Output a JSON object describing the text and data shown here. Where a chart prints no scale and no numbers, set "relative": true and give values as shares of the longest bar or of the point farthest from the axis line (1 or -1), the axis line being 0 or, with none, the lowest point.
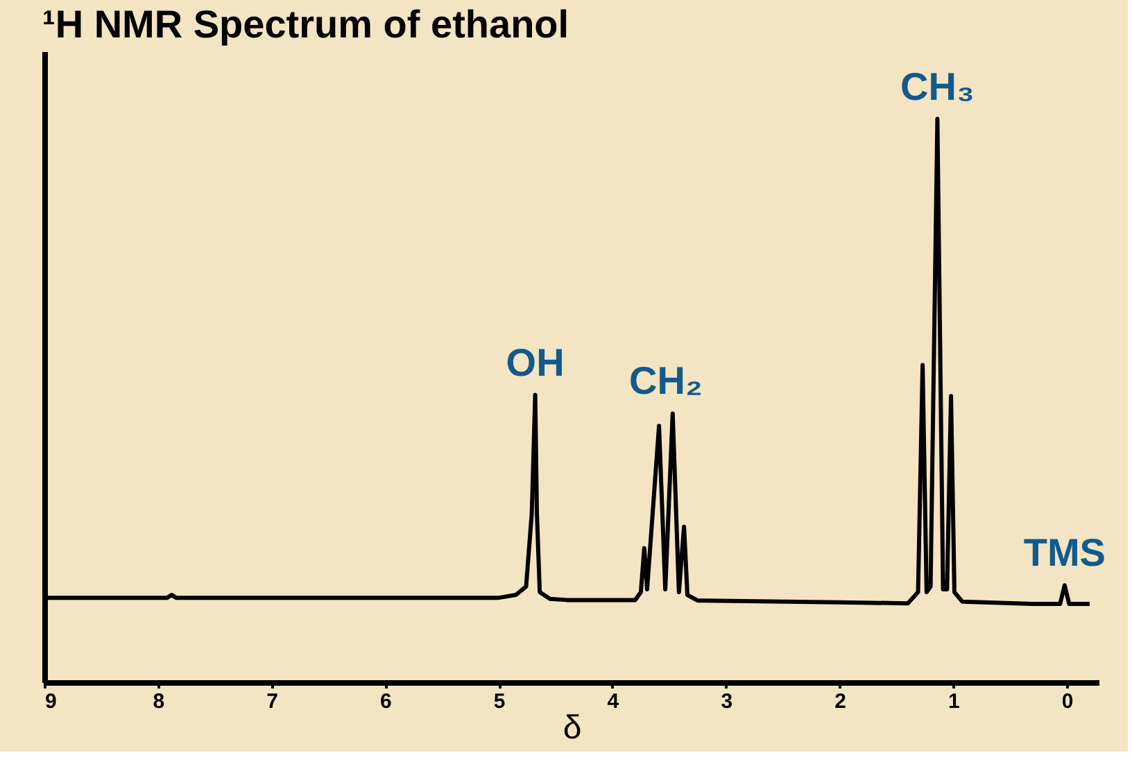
{
  "chart_data": {
    "type": "line",
    "title": "¹H NMR Spectrum of ethanol",
    "xlabel": "δ",
    "relative": true,
    "xlim": [
      9,
      -0.28
    ],
    "xticks": [
      9,
      8,
      7,
      6,
      5,
      4,
      3,
      2,
      1,
      0
    ],
    "grid": false,
    "marker": "none",
    "line_style": "solid",
    "x": [
      9.0,
      8.0,
      7.92,
      7.88,
      7.84,
      5.0,
      4.85,
      4.76,
      4.71,
      4.68,
      4.665,
      4.64,
      4.55,
      4.4,
      3.8,
      3.75,
      3.72,
      3.695,
      3.59,
      3.535,
      3.47,
      3.415,
      3.37,
      3.34,
      3.25,
      2.0,
      1.4,
      1.31,
      1.27,
      1.235,
      1.2,
      1.14,
      1.09,
      1.055,
      1.02,
      0.99,
      0.92,
      0.3,
      0.06,
      0.02,
      -0.02,
      -0.2
    ],
    "series": [
      {
        "color": "#000000",
        "values": [
          0.15,
          0.15,
          0.15,
          0.155,
          0.15,
          0.15,
          0.155,
          0.17,
          0.3,
          0.51,
          0.3,
          0.16,
          0.148,
          0.146,
          0.146,
          0.16,
          0.238,
          0.165,
          0.455,
          0.165,
          0.477,
          0.16,
          0.276,
          0.155,
          0.145,
          0.142,
          0.14,
          0.16,
          0.563,
          0.16,
          0.17,
          1.0,
          0.165,
          0.165,
          0.508,
          0.16,
          0.143,
          0.139,
          0.139,
          0.172,
          0.139,
          0.139
        ]
      }
    ],
    "annotations": [
      {
        "text": "OH",
        "x": 4.68,
        "y": 0.51
      },
      {
        "text": "CH₂",
        "x": 3.53,
        "y": 0.477
      },
      {
        "text": "CH₃",
        "x": 1.14,
        "y": 1.0
      },
      {
        "text": "TMS",
        "x": 0.02,
        "y": 0.172
      }
    ]
  }
}
